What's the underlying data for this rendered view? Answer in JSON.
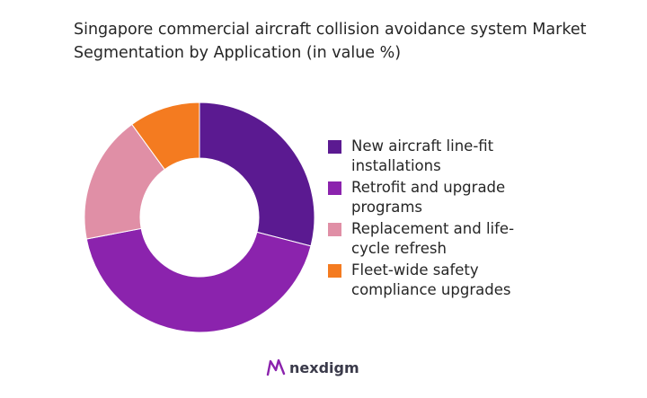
{
  "chart_data": {
    "type": "pie",
    "style": "donut",
    "title": "Singapore commercial aircraft collision avoidance system Market Segmentation by Application (in value %)",
    "categories": [
      "New aircraft line-fit installations",
      "Retrofit and upgrade programs",
      "Replacement and life-cycle refresh",
      "Fleet-wide safety compliance upgrades"
    ],
    "values": [
      29,
      43,
      18,
      10
    ],
    "colors": [
      "#5b1a91",
      "#8b23ad",
      "#e08fa6",
      "#f47b20"
    ],
    "legend_position": "right"
  },
  "brand": {
    "name": "nexdigm",
    "icon": "nexdigm-logo-icon",
    "icon_color": "#8b23ad"
  }
}
